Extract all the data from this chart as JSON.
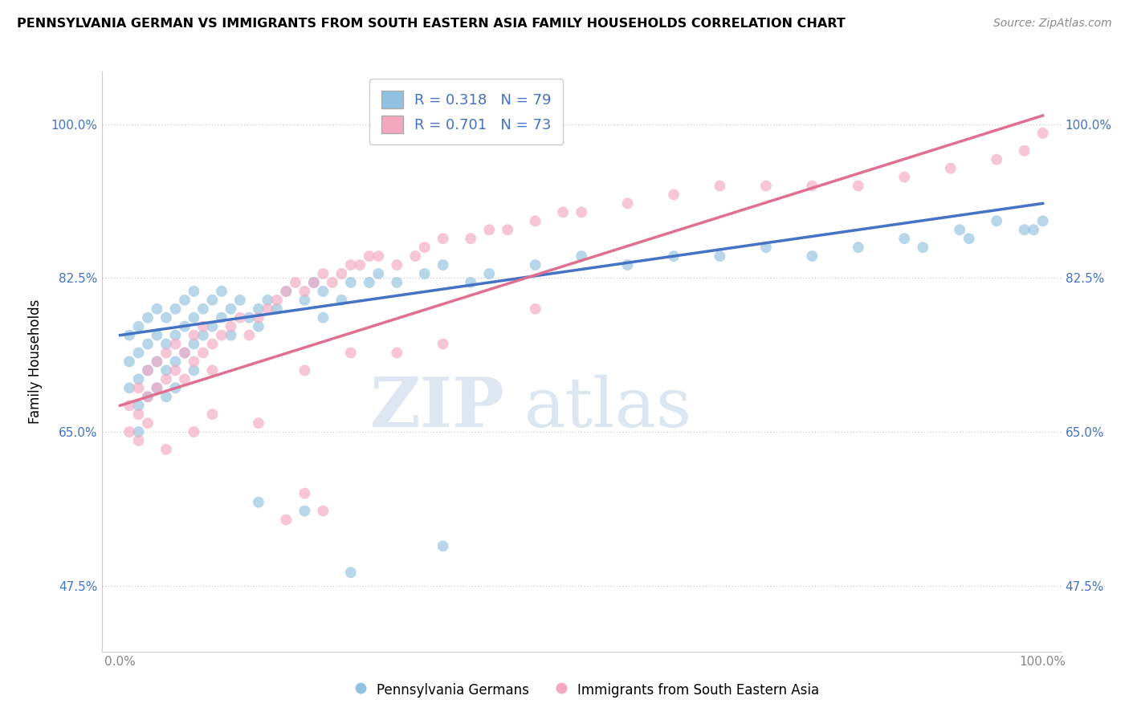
{
  "title": "PENNSYLVANIA GERMAN VS IMMIGRANTS FROM SOUTH EASTERN ASIA FAMILY HOUSEHOLDS CORRELATION CHART",
  "source": "Source: ZipAtlas.com",
  "ylabel": "Family Households",
  "xlabel": "",
  "legend_blue_label": "Pennsylvania Germans",
  "legend_pink_label": "Immigrants from South Eastern Asia",
  "blue_R": 0.318,
  "blue_N": 79,
  "pink_R": 0.701,
  "pink_N": 73,
  "xlim": [
    -2,
    102
  ],
  "ylim": [
    40,
    106
  ],
  "yticks": [
    47.5,
    65.0,
    82.5,
    100.0
  ],
  "xticks": [
    0,
    100
  ],
  "x_tick_labels": [
    "0.0%",
    "100.0%"
  ],
  "y_tick_labels": [
    "47.5%",
    "65.0%",
    "82.5%",
    "100.0%"
  ],
  "blue_color": "#92c0e0",
  "pink_color": "#f4a8c0",
  "blue_line_color": "#4472c4",
  "pink_line_color": "#e07090",
  "watermark_zip": "ZIP",
  "watermark_atlas": "atlas",
  "background_color": "#ffffff",
  "blue_reg_x0": 0,
  "blue_reg_y0": 76.0,
  "blue_reg_x1": 100,
  "blue_reg_y1": 91.0,
  "pink_reg_x0": 0,
  "pink_reg_y0": 68.0,
  "pink_reg_x1": 100,
  "pink_reg_y1": 101.0,
  "grid_color": "#d0d0d0",
  "title_color": "#000000",
  "source_color": "#888888",
  "ylabel_color": "#000000",
  "yticklabel_color": "#4472c4",
  "xticklabel_color": "#888888",
  "blue_scatter_x": [
    1,
    1,
    1,
    2,
    2,
    2,
    2,
    2,
    3,
    3,
    3,
    3,
    4,
    4,
    4,
    4,
    5,
    5,
    5,
    5,
    6,
    6,
    6,
    6,
    7,
    7,
    7,
    8,
    8,
    8,
    8,
    9,
    9,
    10,
    10,
    11,
    11,
    12,
    12,
    13,
    14,
    15,
    15,
    16,
    17,
    18,
    20,
    21,
    22,
    22,
    24,
    25,
    27,
    28,
    30,
    33,
    35,
    38,
    40,
    45,
    50,
    55,
    60,
    65,
    70,
    75,
    80,
    85,
    87,
    91,
    92,
    95,
    98,
    99,
    100,
    15,
    20,
    35,
    25
  ],
  "blue_scatter_y": [
    76,
    73,
    70,
    77,
    74,
    71,
    68,
    65,
    78,
    75,
    72,
    69,
    79,
    76,
    73,
    70,
    78,
    75,
    72,
    69,
    79,
    76,
    73,
    70,
    80,
    77,
    74,
    81,
    78,
    75,
    72,
    79,
    76,
    80,
    77,
    81,
    78,
    79,
    76,
    80,
    78,
    79,
    77,
    80,
    79,
    81,
    80,
    82,
    81,
    78,
    80,
    82,
    82,
    83,
    82,
    83,
    84,
    82,
    83,
    84,
    85,
    84,
    85,
    85,
    86,
    85,
    86,
    87,
    86,
    88,
    87,
    89,
    88,
    88,
    89,
    57,
    56,
    52,
    49
  ],
  "pink_scatter_x": [
    1,
    1,
    2,
    2,
    2,
    3,
    3,
    3,
    4,
    4,
    5,
    5,
    6,
    6,
    7,
    7,
    8,
    8,
    9,
    9,
    10,
    10,
    11,
    12,
    13,
    14,
    15,
    16,
    17,
    18,
    19,
    20,
    21,
    22,
    23,
    24,
    25,
    26,
    27,
    28,
    30,
    32,
    33,
    35,
    38,
    40,
    42,
    45,
    48,
    50,
    55,
    60,
    65,
    70,
    75,
    80,
    85,
    90,
    95,
    98,
    100,
    5,
    8,
    10,
    15,
    20,
    25,
    30,
    35,
    45,
    20,
    22,
    18
  ],
  "pink_scatter_y": [
    68,
    65,
    70,
    67,
    64,
    72,
    69,
    66,
    73,
    70,
    74,
    71,
    75,
    72,
    74,
    71,
    76,
    73,
    77,
    74,
    75,
    72,
    76,
    77,
    78,
    76,
    78,
    79,
    80,
    81,
    82,
    81,
    82,
    83,
    82,
    83,
    84,
    84,
    85,
    85,
    84,
    85,
    86,
    87,
    87,
    88,
    88,
    89,
    90,
    90,
    91,
    92,
    93,
    93,
    93,
    93,
    94,
    95,
    96,
    97,
    99,
    63,
    65,
    67,
    66,
    72,
    74,
    74,
    75,
    79,
    58,
    56,
    55
  ],
  "marker_size": 100,
  "marker_alpha": 0.65
}
